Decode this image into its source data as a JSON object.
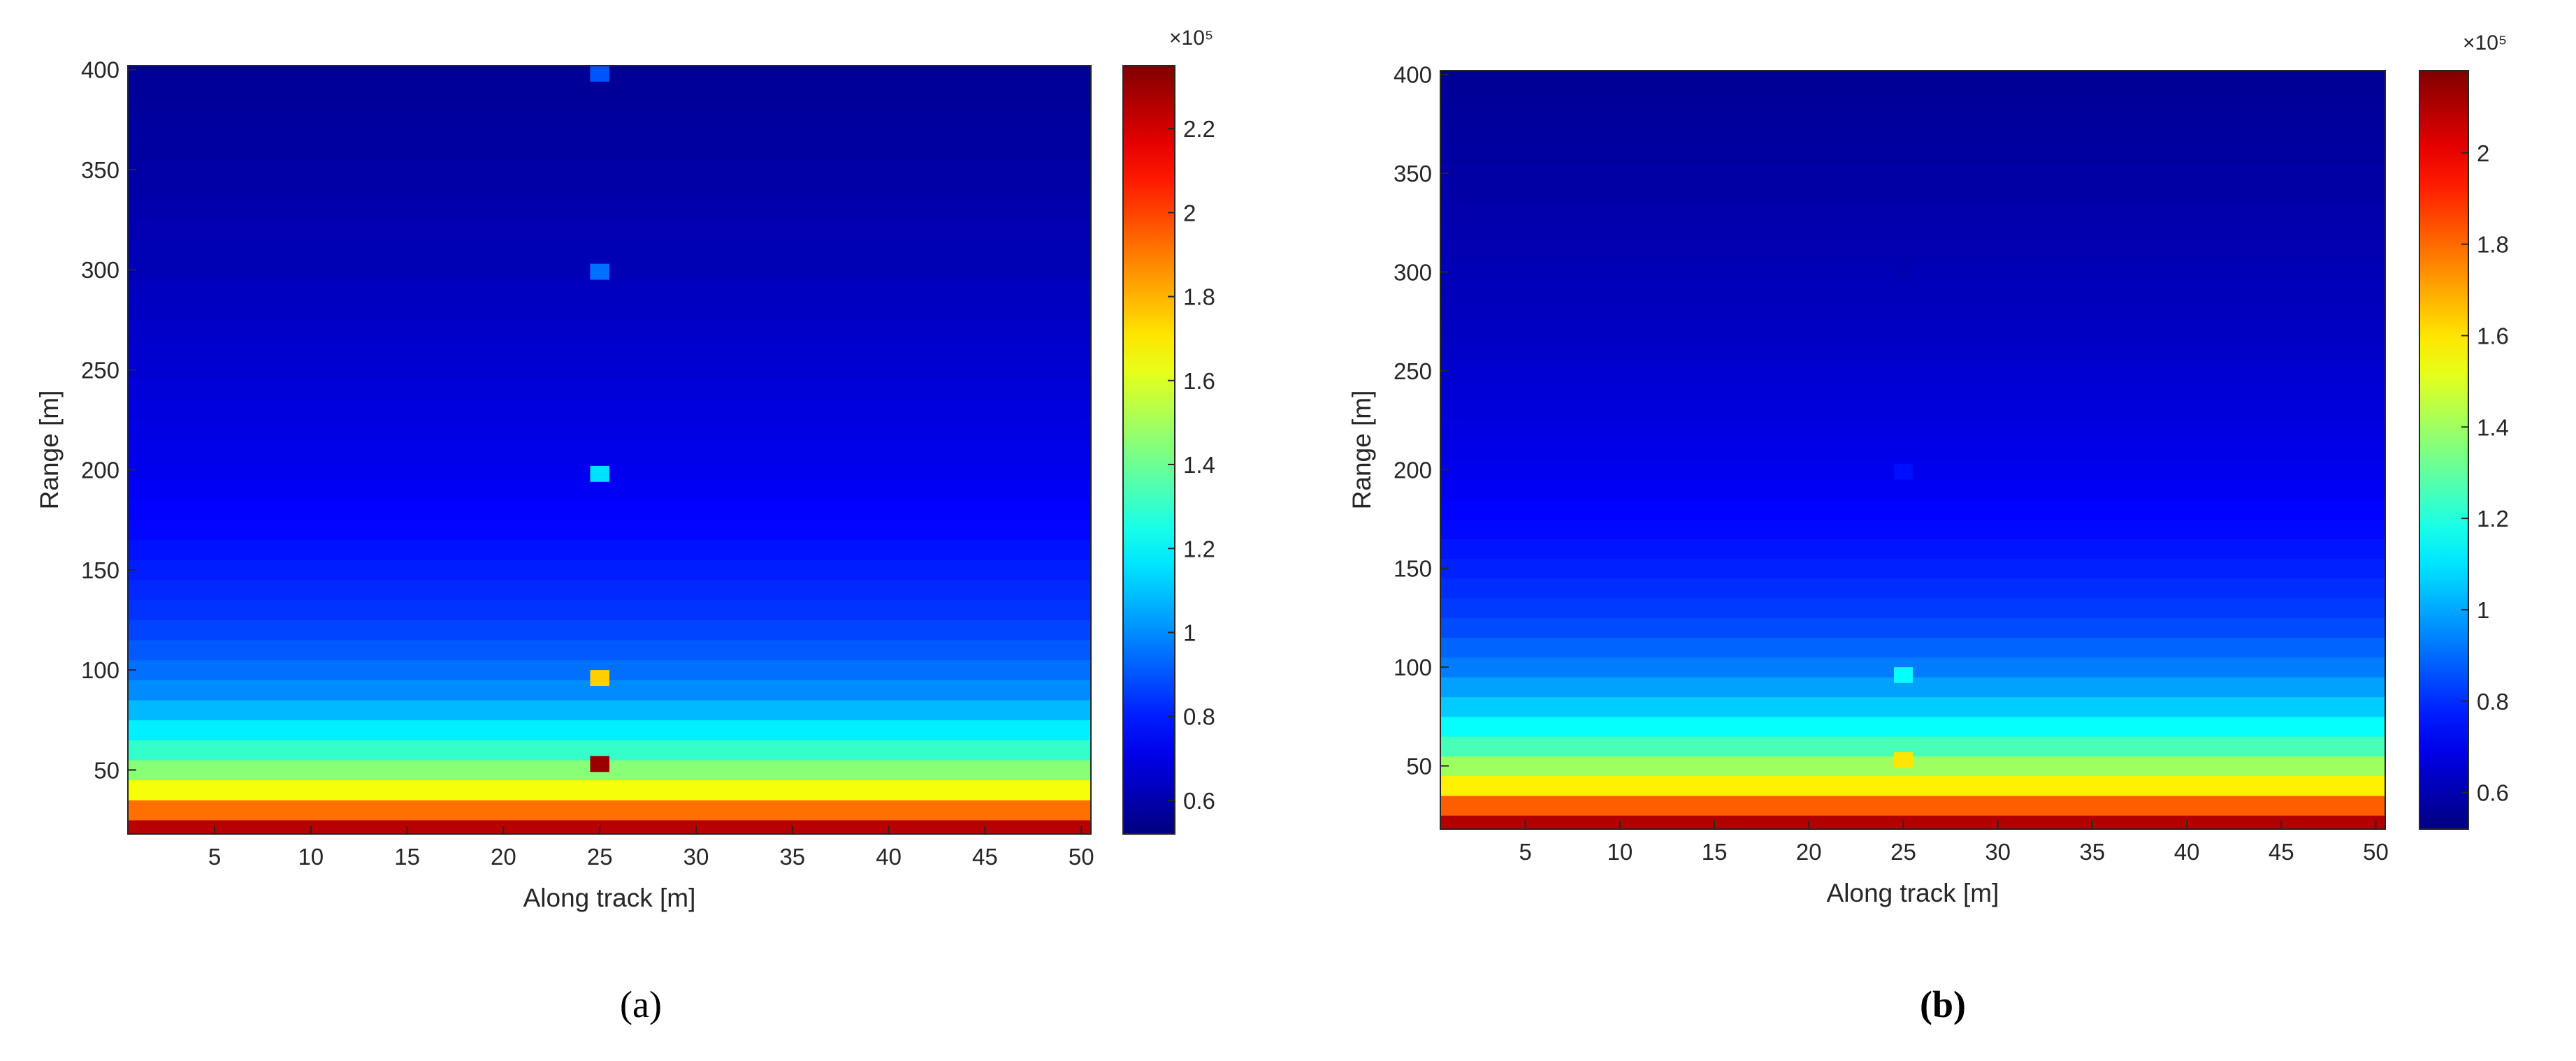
{
  "chart_data": [
    {
      "type": "heatmap",
      "caption": "(a)",
      "xlabel": "Along track [m]",
      "ylabel": "Range [m]",
      "colormap": "jet",
      "xlim": [
        0.5,
        50.5
      ],
      "xticks": [
        5,
        10,
        15,
        20,
        25,
        30,
        35,
        40,
        45,
        50
      ],
      "ylim": [
        18,
        402
      ],
      "yticks": [
        50,
        100,
        150,
        200,
        250,
        300,
        350,
        400
      ],
      "y": [
        20,
        30,
        40,
        50,
        60,
        70,
        80,
        90,
        100,
        110,
        120,
        130,
        140,
        150,
        160,
        170,
        180,
        190,
        200,
        210,
        220,
        230,
        240,
        250,
        260,
        270,
        280,
        290,
        300,
        310,
        320,
        330,
        340,
        350,
        360,
        370,
        380,
        390,
        400
      ],
      "values": [
        2.25,
        1.92,
        1.65,
        1.45,
        1.3,
        1.18,
        1.08,
        1.0,
        0.95,
        0.91,
        0.87,
        0.84,
        0.82,
        0.8,
        0.78,
        0.76,
        0.75,
        0.73,
        0.72,
        0.71,
        0.7,
        0.69,
        0.68,
        0.67,
        0.66,
        0.65,
        0.64,
        0.63,
        0.62,
        0.615,
        0.61,
        0.6,
        0.595,
        0.59,
        0.58,
        0.575,
        0.57,
        0.565,
        0.56
      ],
      "targets": {
        "x": [
          25,
          25,
          25,
          25,
          25
        ],
        "y": [
          53,
          96,
          198,
          299,
          398
        ],
        "values": [
          2.3,
          1.75,
          1.15,
          0.95,
          0.9
        ]
      },
      "clim": [
        0.52,
        2.35
      ],
      "cticks": [
        0.6,
        0.8,
        1,
        1.2,
        1.4,
        1.6,
        1.8,
        2,
        2.2
      ],
      "clabel": "×10⁵"
    },
    {
      "type": "heatmap",
      "caption": "(b)",
      "xlabel": "Along track [m]",
      "ylabel": "Range [m]",
      "colormap": "jet",
      "xlim": [
        0.5,
        50.5
      ],
      "xticks": [
        5,
        10,
        15,
        20,
        25,
        30,
        35,
        40,
        45,
        50
      ],
      "ylim": [
        18,
        402
      ],
      "yticks": [
        50,
        100,
        150,
        200,
        250,
        300,
        350,
        400
      ],
      "y": [
        20,
        30,
        40,
        50,
        60,
        70,
        80,
        90,
        100,
        110,
        120,
        130,
        140,
        150,
        160,
        170,
        180,
        190,
        200,
        210,
        220,
        230,
        240,
        250,
        260,
        270,
        280,
        290,
        300,
        310,
        320,
        330,
        340,
        350,
        360,
        370,
        380,
        390,
        400
      ],
      "values": [
        2.1,
        1.82,
        1.58,
        1.4,
        1.26,
        1.15,
        1.06,
        0.99,
        0.93,
        0.89,
        0.85,
        0.82,
        0.8,
        0.78,
        0.76,
        0.74,
        0.73,
        0.71,
        0.7,
        0.69,
        0.68,
        0.67,
        0.66,
        0.65,
        0.64,
        0.63,
        0.62,
        0.615,
        0.61,
        0.6,
        0.595,
        0.59,
        0.585,
        0.58,
        0.575,
        0.57,
        0.565,
        0.56,
        0.555
      ],
      "targets": {
        "x": [
          25,
          25,
          25,
          25
        ],
        "y": [
          53,
          96,
          199,
          299
        ],
        "values": [
          1.6,
          1.15,
          0.75,
          0.6
        ]
      },
      "clim": [
        0.52,
        2.18
      ],
      "cticks": [
        0.6,
        0.8,
        1,
        1.2,
        1.4,
        1.6,
        1.8,
        2
      ],
      "clabel": "×10⁵"
    }
  ]
}
